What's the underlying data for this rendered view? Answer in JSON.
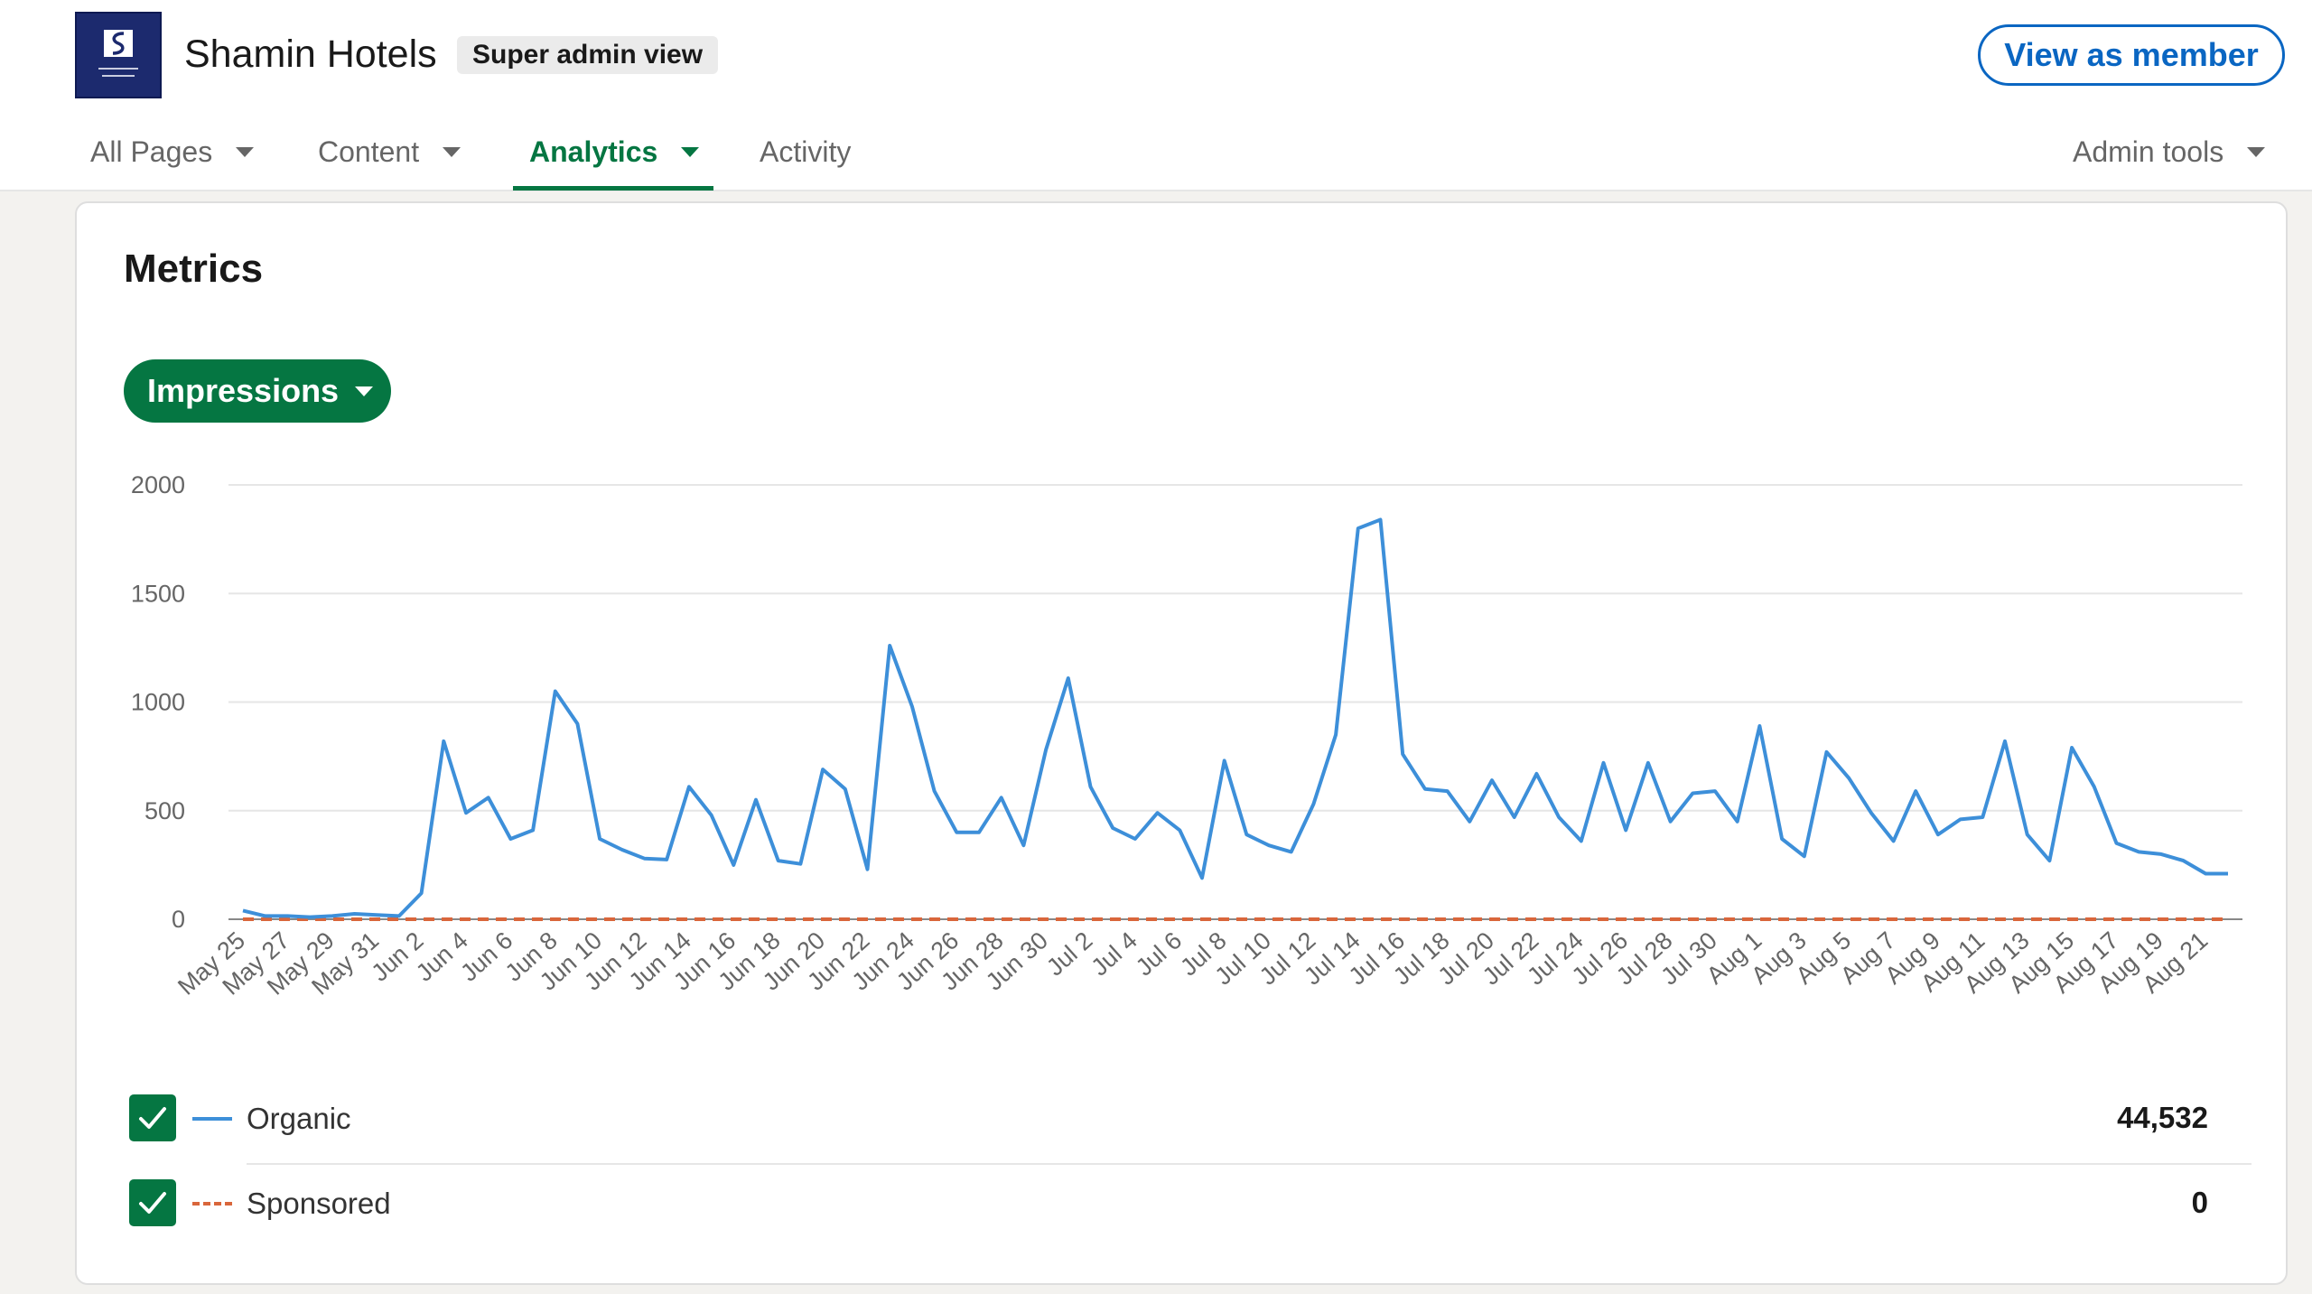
{
  "header": {
    "company_name": "Shamin Hotels",
    "logo_text": "SHAMIN HOTELS",
    "badge": "Super admin view",
    "view_as_member": "View as member",
    "brand_color": "#0a66c2"
  },
  "nav": {
    "items": [
      {
        "label": "All Pages",
        "has_dropdown": true,
        "active": false
      },
      {
        "label": "Content",
        "has_dropdown": true,
        "active": false
      },
      {
        "label": "Analytics",
        "has_dropdown": true,
        "active": true
      },
      {
        "label": "Activity",
        "has_dropdown": false,
        "active": false
      }
    ],
    "admin_tools": "Admin tools",
    "active_color": "#057642"
  },
  "metrics": {
    "title": "Metrics",
    "metric_selector": "Impressions"
  },
  "legend": [
    {
      "label": "Organic",
      "total": "44,532",
      "checked": true,
      "color": "#3d8fd9",
      "style": "solid"
    },
    {
      "label": "Sponsored",
      "total": "0",
      "checked": true,
      "color": "#d9663b",
      "style": "dashed"
    }
  ],
  "chart_data": {
    "type": "line",
    "title": "",
    "xlabel": "",
    "ylabel": "",
    "ylim": [
      0,
      2000
    ],
    "yticks": [
      "0",
      "500",
      "1000",
      "1500",
      "2000"
    ],
    "grid": true,
    "x": [
      "May 25",
      "May 26",
      "May 27",
      "May 28",
      "May 29",
      "May 30",
      "May 31",
      "Jun 1",
      "Jun 2",
      "Jun 3",
      "Jun 4",
      "Jun 5",
      "Jun 6",
      "Jun 7",
      "Jun 8",
      "Jun 9",
      "Jun 10",
      "Jun 11",
      "Jun 12",
      "Jun 13",
      "Jun 14",
      "Jun 15",
      "Jun 16",
      "Jun 17",
      "Jun 18",
      "Jun 19",
      "Jun 20",
      "Jun 21",
      "Jun 22",
      "Jun 23",
      "Jun 24",
      "Jun 25",
      "Jun 26",
      "Jun 27",
      "Jun 28",
      "Jun 29",
      "Jun 30",
      "Jul 1",
      "Jul 2",
      "Jul 3",
      "Jul 4",
      "Jul 5",
      "Jul 6",
      "Jul 7",
      "Jul 8",
      "Jul 9",
      "Jul 10",
      "Jul 11",
      "Jul 12",
      "Jul 13",
      "Jul 14",
      "Jul 15",
      "Jul 16",
      "Jul 17",
      "Jul 18",
      "Jul 19",
      "Jul 20",
      "Jul 21",
      "Jul 22",
      "Jul 23",
      "Jul 24",
      "Jul 25",
      "Jul 26",
      "Jul 27",
      "Jul 28",
      "Jul 29",
      "Jul 30",
      "Jul 31",
      "Aug 1",
      "Aug 2",
      "Aug 3",
      "Aug 4",
      "Aug 5",
      "Aug 6",
      "Aug 7",
      "Aug 8",
      "Aug 9",
      "Aug 10",
      "Aug 11",
      "Aug 12",
      "Aug 13",
      "Aug 14",
      "Aug 15",
      "Aug 16",
      "Aug 17",
      "Aug 18",
      "Aug 19",
      "Aug 20",
      "Aug 21",
      "Aug 22"
    ],
    "x_tick_labels": [
      "May 25",
      "May 27",
      "May 29",
      "May 31",
      "Jun 2",
      "Jun 4",
      "Jun 6",
      "Jun 8",
      "Jun 10",
      "Jun 12",
      "Jun 14",
      "Jun 16",
      "Jun 18",
      "Jun 20",
      "Jun 22",
      "Jun 24",
      "Jun 26",
      "Jun 28",
      "Jun 30",
      "Jul 2",
      "Jul 4",
      "Jul 6",
      "Jul 8",
      "Jul 10",
      "Jul 12",
      "Jul 14",
      "Jul 16",
      "Jul 18",
      "Jul 20",
      "Jul 22",
      "Jul 24",
      "Jul 26",
      "Jul 28",
      "Jul 30",
      "Aug 1",
      "Aug 3",
      "Aug 5",
      "Aug 7",
      "Aug 9",
      "Aug 11",
      "Aug 13",
      "Aug 15",
      "Aug 17",
      "Aug 19",
      "Aug 21"
    ],
    "series": [
      {
        "name": "Organic",
        "color": "#3d8fd9",
        "values": [
          40,
          15,
          15,
          10,
          15,
          25,
          20,
          15,
          120,
          820,
          490,
          560,
          370,
          410,
          1050,
          900,
          370,
          320,
          280,
          275,
          610,
          480,
          250,
          550,
          270,
          255,
          690,
          600,
          230,
          1260,
          980,
          590,
          400,
          400,
          560,
          340,
          780,
          1110,
          610,
          420,
          370,
          490,
          410,
          190,
          730,
          390,
          340,
          310,
          530,
          850,
          1800,
          1840,
          760,
          600,
          590,
          450,
          640,
          470,
          670,
          470,
          360,
          720,
          410,
          720,
          450,
          580,
          590,
          450,
          890,
          370,
          290,
          770,
          650,
          490,
          360,
          590,
          390,
          460,
          470,
          820,
          390,
          270,
          790,
          610,
          350,
          310,
          300,
          270,
          210,
          210
        ]
      },
      {
        "name": "Sponsored",
        "color": "#d9663b",
        "values": [
          0,
          0,
          0,
          0,
          0,
          0,
          0,
          0,
          0,
          0,
          0,
          0,
          0,
          0,
          0,
          0,
          0,
          0,
          0,
          0,
          0,
          0,
          0,
          0,
          0,
          0,
          0,
          0,
          0,
          0,
          0,
          0,
          0,
          0,
          0,
          0,
          0,
          0,
          0,
          0,
          0,
          0,
          0,
          0,
          0,
          0,
          0,
          0,
          0,
          0,
          0,
          0,
          0,
          0,
          0,
          0,
          0,
          0,
          0,
          0,
          0,
          0,
          0,
          0,
          0,
          0,
          0,
          0,
          0,
          0,
          0,
          0,
          0,
          0,
          0,
          0,
          0,
          0,
          0,
          0,
          0,
          0,
          0,
          0,
          0,
          0,
          0,
          0,
          0,
          0
        ]
      }
    ]
  }
}
